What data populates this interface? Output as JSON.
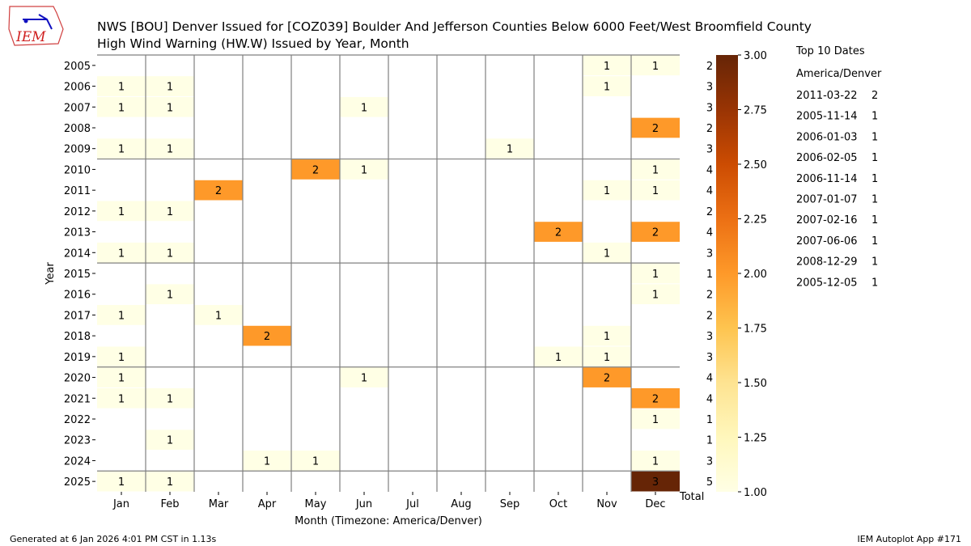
{
  "logo_text": "IEM",
  "footer": {
    "generated": "Generated at 6 Jan 2026 4:01 PM CST in 1.13s",
    "app": "IEM Autoplot App #171"
  },
  "top10": {
    "title": "Top 10 Dates",
    "timezone": "America/Denver",
    "items": [
      {
        "date": "2011-03-22",
        "count": "2"
      },
      {
        "date": "2005-11-14",
        "count": "1"
      },
      {
        "date": "2006-01-03",
        "count": "1"
      },
      {
        "date": "2006-02-05",
        "count": "1"
      },
      {
        "date": "2006-11-14",
        "count": "1"
      },
      {
        "date": "2007-01-07",
        "count": "1"
      },
      {
        "date": "2007-02-16",
        "count": "1"
      },
      {
        "date": "2007-06-06",
        "count": "1"
      },
      {
        "date": "2008-12-29",
        "count": "1"
      },
      {
        "date": "2005-12-05",
        "count": "1"
      }
    ]
  },
  "chart_data": {
    "type": "heatmap",
    "title": "NWS [BOU] Denver Issued for [COZ039] Boulder And Jefferson Counties Below 6000 Feet/West Broomfield County",
    "subtitle": "High Wind Warning (HW.W) Issued by Year, Month",
    "xlabel": "Month (Timezone: America/Denver)",
    "ylabel": "Year",
    "total_label": "Total",
    "x": [
      "Jan",
      "Feb",
      "Mar",
      "Apr",
      "May",
      "Jun",
      "Jul",
      "Aug",
      "Sep",
      "Oct",
      "Nov",
      "Dec"
    ],
    "y": [
      "2005",
      "2006",
      "2007",
      "2008",
      "2009",
      "2010",
      "2011",
      "2012",
      "2013",
      "2014",
      "2015",
      "2016",
      "2017",
      "2018",
      "2019",
      "2020",
      "2021",
      "2022",
      "2023",
      "2024",
      "2025"
    ],
    "values": [
      [
        0,
        0,
        0,
        0,
        0,
        0,
        0,
        0,
        0,
        0,
        1,
        1
      ],
      [
        1,
        1,
        0,
        0,
        0,
        0,
        0,
        0,
        0,
        0,
        1,
        0
      ],
      [
        1,
        1,
        0,
        0,
        0,
        1,
        0,
        0,
        0,
        0,
        0,
        0
      ],
      [
        0,
        0,
        0,
        0,
        0,
        0,
        0,
        0,
        0,
        0,
        0,
        2
      ],
      [
        1,
        1,
        0,
        0,
        0,
        0,
        0,
        0,
        1,
        0,
        0,
        0
      ],
      [
        0,
        0,
        0,
        0,
        2,
        1,
        0,
        0,
        0,
        0,
        0,
        1
      ],
      [
        0,
        0,
        2,
        0,
        0,
        0,
        0,
        0,
        0,
        0,
        1,
        1
      ],
      [
        1,
        1,
        0,
        0,
        0,
        0,
        0,
        0,
        0,
        0,
        0,
        0
      ],
      [
        0,
        0,
        0,
        0,
        0,
        0,
        0,
        0,
        0,
        2,
        0,
        2
      ],
      [
        1,
        1,
        0,
        0,
        0,
        0,
        0,
        0,
        0,
        0,
        1,
        0
      ],
      [
        0,
        0,
        0,
        0,
        0,
        0,
        0,
        0,
        0,
        0,
        0,
        1
      ],
      [
        0,
        1,
        0,
        0,
        0,
        0,
        0,
        0,
        0,
        0,
        0,
        1
      ],
      [
        1,
        0,
        1,
        0,
        0,
        0,
        0,
        0,
        0,
        0,
        0,
        0
      ],
      [
        0,
        0,
        0,
        2,
        0,
        0,
        0,
        0,
        0,
        0,
        1,
        0
      ],
      [
        1,
        0,
        0,
        0,
        0,
        0,
        0,
        0,
        0,
        1,
        1,
        0
      ],
      [
        1,
        0,
        0,
        0,
        0,
        1,
        0,
        0,
        0,
        0,
        2,
        0
      ],
      [
        1,
        1,
        0,
        0,
        0,
        0,
        0,
        0,
        0,
        0,
        0,
        2
      ],
      [
        0,
        0,
        0,
        0,
        0,
        0,
        0,
        0,
        0,
        0,
        0,
        1
      ],
      [
        0,
        1,
        0,
        0,
        0,
        0,
        0,
        0,
        0,
        0,
        0,
        0
      ],
      [
        0,
        0,
        0,
        1,
        1,
        0,
        0,
        0,
        0,
        0,
        0,
        1
      ],
      [
        1,
        1,
        0,
        0,
        0,
        0,
        0,
        0,
        0,
        0,
        0,
        3
      ]
    ],
    "totals": [
      2,
      3,
      3,
      2,
      3,
      4,
      4,
      2,
      4,
      3,
      1,
      2,
      2,
      3,
      3,
      4,
      4,
      1,
      1,
      3,
      5
    ],
    "colorbar": {
      "range": [
        1,
        3
      ],
      "ticks": [
        "1.00",
        "1.25",
        "1.50",
        "1.75",
        "2.00",
        "2.25",
        "2.50",
        "2.75",
        "3.00"
      ],
      "colors": [
        "#ffffe5",
        "#fff7bc",
        "#fee391",
        "#fec44f",
        "#fe9929",
        "#ec7014",
        "#cc4c02",
        "#993404",
        "#662506"
      ]
    }
  }
}
